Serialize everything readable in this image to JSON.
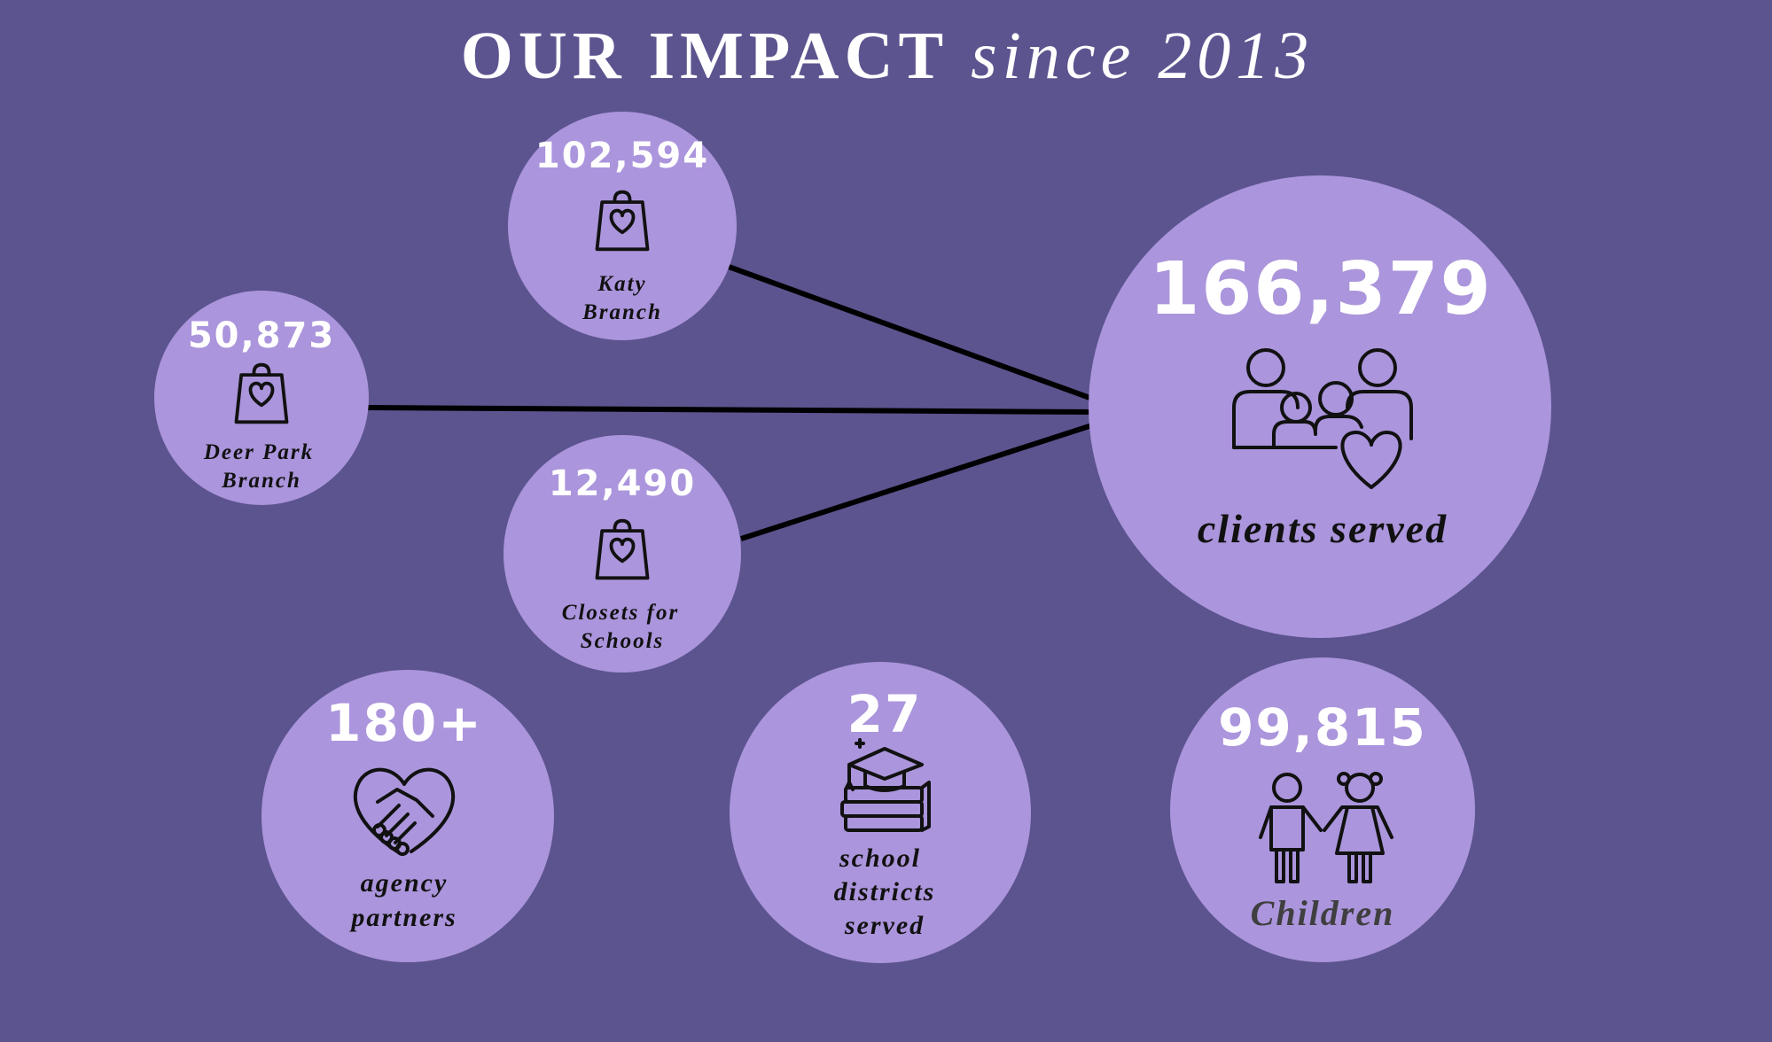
{
  "title": {
    "main": "OUR IMPACT",
    "accent": "since 2013"
  },
  "stats": [
    {
      "value": "102,594",
      "label": [
        "Katy",
        "Branch"
      ]
    },
    {
      "value": "50,873",
      "label": [
        "Deer Park",
        "Branch"
      ]
    },
    {
      "value": "12,490",
      "label": [
        "Closets for",
        "Schools"
      ]
    },
    {
      "value": "166,379",
      "label": [
        "clients served"
      ]
    },
    {
      "value": "180+",
      "label": [
        "agency",
        "partners"
      ]
    },
    {
      "value": "27",
      "label": [
        "school",
        "districts",
        "served"
      ]
    },
    {
      "value": "99,815",
      "label": [
        "Children"
      ]
    }
  ]
}
